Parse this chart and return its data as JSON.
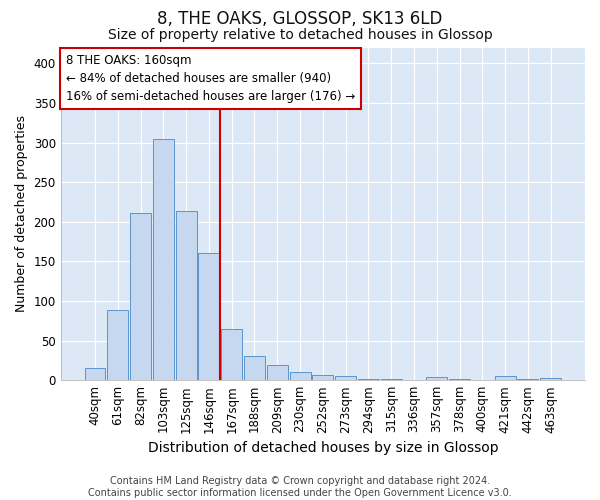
{
  "title": "8, THE OAKS, GLOSSOP, SK13 6LD",
  "subtitle": "Size of property relative to detached houses in Glossop",
  "xlabel": "Distribution of detached houses by size in Glossop",
  "ylabel": "Number of detached properties",
  "footer_line1": "Contains HM Land Registry data © Crown copyright and database right 2024.",
  "footer_line2": "Contains public sector information licensed under the Open Government Licence v3.0.",
  "bar_labels": [
    "40sqm",
    "61sqm",
    "82sqm",
    "103sqm",
    "125sqm",
    "146sqm",
    "167sqm",
    "188sqm",
    "209sqm",
    "230sqm",
    "252sqm",
    "273sqm",
    "294sqm",
    "315sqm",
    "336sqm",
    "357sqm",
    "378sqm",
    "400sqm",
    "421sqm",
    "442sqm",
    "463sqm"
  ],
  "bar_values": [
    15,
    88,
    211,
    304,
    213,
    160,
    64,
    30,
    19,
    10,
    6,
    5,
    1,
    1,
    0,
    4,
    1,
    0,
    5,
    1,
    3
  ],
  "bar_color": "#c5d8f0",
  "bar_edge_color": "#5a95cc",
  "vline_x": 5.5,
  "vline_color": "#cc0000",
  "annotation_text": "8 THE OAKS: 160sqm\n← 84% of detached houses are smaller (940)\n16% of semi-detached houses are larger (176) →",
  "annotation_box_color": "#ffffff",
  "annotation_box_edge": "#cc0000",
  "ylim": [
    0,
    420
  ],
  "yticks": [
    0,
    50,
    100,
    150,
    200,
    250,
    300,
    350,
    400
  ],
  "fig_bg_color": "#ffffff",
  "plot_bg_color": "#dce8f5",
  "grid_color": "#ffffff",
  "title_fontsize": 12,
  "subtitle_fontsize": 10,
  "xlabel_fontsize": 10,
  "ylabel_fontsize": 9,
  "tick_fontsize": 8.5,
  "footer_fontsize": 7
}
